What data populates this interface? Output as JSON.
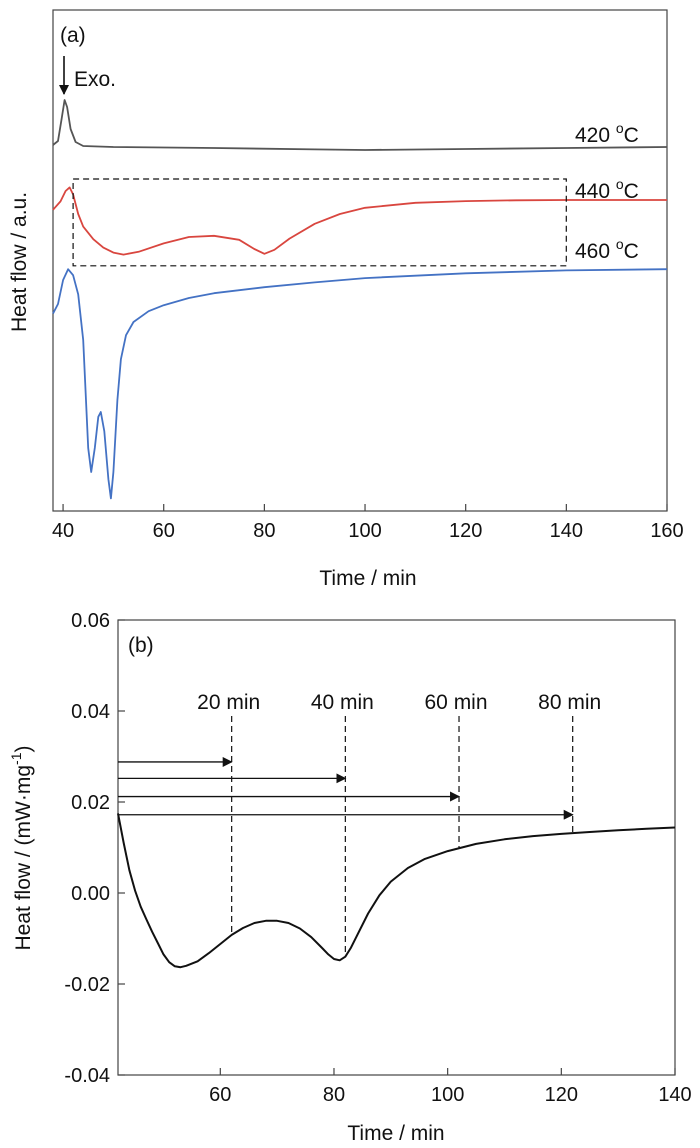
{
  "chart_data": [
    {
      "type": "line",
      "panel_label": "(a)",
      "xlabel": "Time / min",
      "ylabel": "Heat flow / a.u.",
      "xlim": [
        38,
        160
      ],
      "x_ticks": [
        40,
        60,
        80,
        100,
        120,
        140,
        160
      ],
      "y_ticks_shown": false,
      "exo_label": "Exo.",
      "series": [
        {
          "name": "420 °C",
          "label_main": "420 ",
          "label_sup": "o",
          "label_unit": "C",
          "color": "#555555",
          "points": [
            [
              38,
              0.1
            ],
            [
              39,
              0.3
            ],
            [
              39.7,
              1.4
            ],
            [
              40.3,
              2.35
            ],
            [
              40.8,
              2.0
            ],
            [
              41.5,
              0.9
            ],
            [
              42.5,
              0.25
            ],
            [
              44,
              0.05
            ],
            [
              50,
              0.0
            ],
            [
              70,
              -0.05
            ],
            [
              90,
              -0.12
            ],
            [
              100,
              -0.15
            ],
            [
              120,
              -0.1
            ],
            [
              140,
              -0.05
            ],
            [
              160,
              0.0
            ]
          ]
        },
        {
          "name": "440 °C",
          "label_main": "440 ",
          "label_sup": "o",
          "label_unit": "C",
          "color": "#d9463f",
          "points": [
            [
              38,
              -0.35
            ],
            [
              39.5,
              -0.05
            ],
            [
              40.5,
              0.32
            ],
            [
              41.3,
              0.45
            ],
            [
              42,
              0.2
            ],
            [
              43,
              -0.5
            ],
            [
              44,
              -0.95
            ],
            [
              46,
              -1.4
            ],
            [
              48,
              -1.7
            ],
            [
              50,
              -1.88
            ],
            [
              52,
              -1.95
            ],
            [
              55,
              -1.85
            ],
            [
              60,
              -1.55
            ],
            [
              65,
              -1.32
            ],
            [
              70,
              -1.28
            ],
            [
              75,
              -1.42
            ],
            [
              78,
              -1.75
            ],
            [
              80,
              -1.92
            ],
            [
              82,
              -1.78
            ],
            [
              85,
              -1.38
            ],
            [
              90,
              -0.85
            ],
            [
              95,
              -0.5
            ],
            [
              100,
              -0.28
            ],
            [
              110,
              -0.1
            ],
            [
              120,
              -0.04
            ],
            [
              130,
              -0.01
            ],
            [
              140,
              0.0
            ],
            [
              150,
              0.0
            ],
            [
              160,
              0.0
            ]
          ]
        },
        {
          "name": "460 °C",
          "label_main": "460 ",
          "label_sup": "o",
          "label_unit": "C",
          "color": "#4472c4",
          "points": [
            [
              38,
              -1.9
            ],
            [
              39,
              -1.5
            ],
            [
              40,
              -0.5
            ],
            [
              41,
              -0.05
            ],
            [
              42,
              -0.3
            ],
            [
              43,
              -1.1
            ],
            [
              44,
              -3.0
            ],
            [
              45,
              -7.5
            ],
            [
              45.6,
              -8.5
            ],
            [
              46.3,
              -7.5
            ],
            [
              47,
              -6.2
            ],
            [
              47.5,
              -6.0
            ],
            [
              48.2,
              -6.8
            ],
            [
              49,
              -8.8
            ],
            [
              49.5,
              -9.6
            ],
            [
              50,
              -8.5
            ],
            [
              50.8,
              -5.5
            ],
            [
              51.5,
              -3.8
            ],
            [
              52.5,
              -2.8
            ],
            [
              54,
              -2.25
            ],
            [
              57,
              -1.8
            ],
            [
              60,
              -1.55
            ],
            [
              65,
              -1.25
            ],
            [
              70,
              -1.05
            ],
            [
              80,
              -0.8
            ],
            [
              90,
              -0.6
            ],
            [
              100,
              -0.42
            ],
            [
              120,
              -0.22
            ],
            [
              140,
              -0.1
            ],
            [
              160,
              -0.05
            ]
          ]
        }
      ],
      "inset_box": {
        "x": [
          42,
          140
        ],
        "y": [
          -2.35,
          0.75
        ]
      }
    },
    {
      "type": "line",
      "panel_label": "(b)",
      "xlabel": "Time / min",
      "ylabel_main": "Heat flow / (mW·mg",
      "ylabel_sup": "-1",
      "ylabel_end": ")",
      "xlim": [
        42,
        140
      ],
      "ylim": [
        -0.04,
        0.06
      ],
      "x_ticks": [
        60,
        80,
        100,
        120,
        140
      ],
      "y_ticks": [
        "-0.04",
        "-0.02",
        "0.00",
        "0.02",
        "0.04",
        "0.06"
      ],
      "y_tick_values": [
        -0.04,
        -0.02,
        0.0,
        0.02,
        0.04,
        0.06
      ],
      "series": [
        {
          "color": "#111111",
          "points": [
            [
              42,
              0.0175
            ],
            [
              43,
              0.011
            ],
            [
              44,
              0.005
            ],
            [
              45,
              0.0005
            ],
            [
              46,
              -0.003
            ],
            [
              47,
              -0.0058
            ],
            [
              48,
              -0.0085
            ],
            [
              49,
              -0.011
            ],
            [
              50,
              -0.0135
            ],
            [
              51,
              -0.0152
            ],
            [
              52,
              -0.0161
            ],
            [
              53,
              -0.0163
            ],
            [
              54,
              -0.016
            ],
            [
              56,
              -0.015
            ],
            [
              58,
              -0.0132
            ],
            [
              60,
              -0.0112
            ],
            [
              62,
              -0.0092
            ],
            [
              64,
              -0.0077
            ],
            [
              66,
              -0.0066
            ],
            [
              68,
              -0.0061
            ],
            [
              70,
              -0.0061
            ],
            [
              72,
              -0.0066
            ],
            [
              74,
              -0.0078
            ],
            [
              76,
              -0.0097
            ],
            [
              78,
              -0.0122
            ],
            [
              79,
              -0.0135
            ],
            [
              80,
              -0.0145
            ],
            [
              81,
              -0.0148
            ],
            [
              82,
              -0.014
            ],
            [
              83,
              -0.012
            ],
            [
              84,
              -0.0095
            ],
            [
              86,
              -0.0045
            ],
            [
              88,
              -0.0005
            ],
            [
              90,
              0.0025
            ],
            [
              93,
              0.0055
            ],
            [
              96,
              0.0075
            ],
            [
              100,
              0.0092
            ],
            [
              105,
              0.0108
            ],
            [
              110,
              0.0118
            ],
            [
              115,
              0.0125
            ],
            [
              120,
              0.013
            ],
            [
              125,
              0.0134
            ],
            [
              130,
              0.0138
            ],
            [
              135,
              0.0141
            ],
            [
              140,
              0.0144
            ]
          ]
        }
      ],
      "markers": [
        {
          "label": "20 min",
          "x": 62,
          "arrow_y": 0.0288
        },
        {
          "label": "40 min",
          "x": 82,
          "arrow_y": 0.0252
        },
        {
          "label": "60 min",
          "x": 102,
          "arrow_y": 0.0212
        },
        {
          "label": "80 min",
          "x": 122,
          "arrow_y": 0.0172
        }
      ]
    }
  ]
}
